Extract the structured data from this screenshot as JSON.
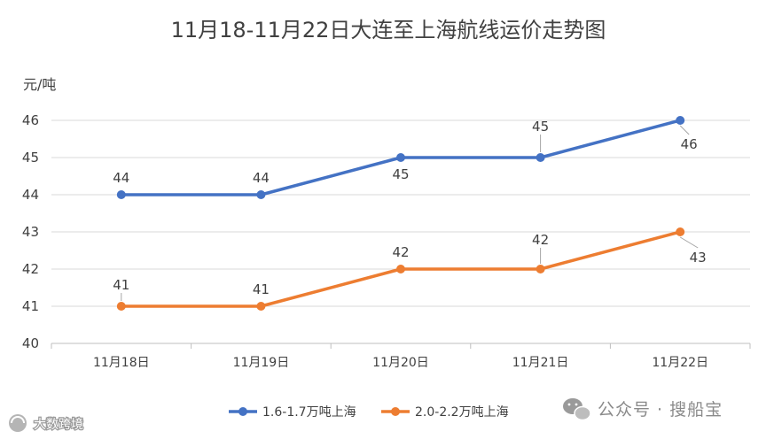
{
  "chart_data": {
    "type": "line",
    "title": "11月18-11月22日大连至上海航线运价走势图",
    "ylabel": "元/吨",
    "xlabel": "",
    "categories": [
      "11月18日",
      "11月19日",
      "11月20日",
      "11月21日",
      "11月22日"
    ],
    "ylim": [
      40,
      46
    ],
    "yticks": [
      40,
      41,
      42,
      43,
      44,
      45,
      46
    ],
    "grid": true,
    "legend_position": "bottom",
    "series": [
      {
        "name": "1.6-1.7万吨上海",
        "values": [
          44,
          44,
          45,
          45,
          46
        ],
        "color": "#4472C4"
      },
      {
        "name": "2.0-2.2万吨上海",
        "values": [
          41,
          41,
          42,
          42,
          43
        ],
        "color": "#ED7D31"
      }
    ]
  },
  "watermark": {
    "left_text": "大数跨境",
    "right_text": "公众号 · 搜船宝",
    "right_icon": "wechat-icon"
  }
}
